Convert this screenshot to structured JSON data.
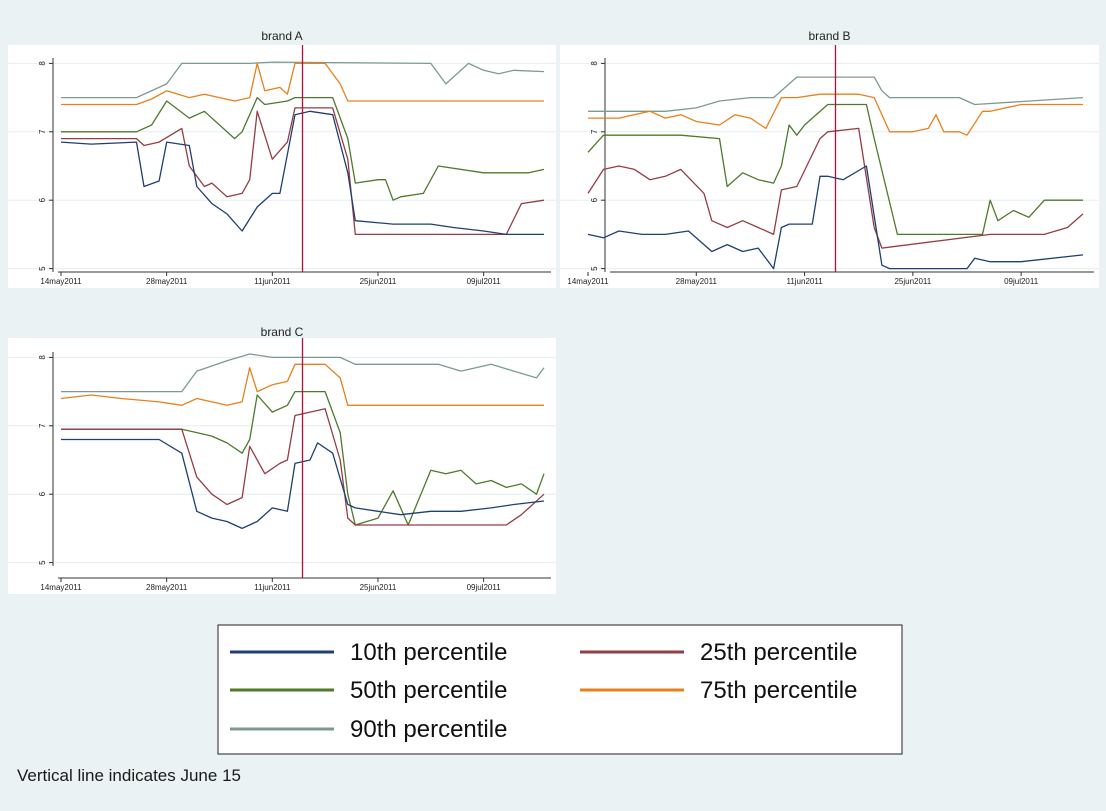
{
  "chart_data": [
    {
      "type": "line",
      "title": "brand A",
      "x_ticks": [
        "14may2011",
        "28may2011",
        "11jun2011",
        "25jun2011",
        "09jul2011"
      ],
      "y_ticks": [
        5,
        6,
        7,
        8
      ],
      "xlim": [
        "2011-05-14",
        "2011-07-17"
      ],
      "ylim": [
        4.95,
        8.05
      ],
      "vline": "2011-06-15",
      "series": [
        {
          "name": "10th percentile",
          "x": [
            "2011-05-14",
            "2011-05-18",
            "2011-05-24",
            "2011-05-25",
            "2011-05-27",
            "2011-05-28",
            "2011-05-31",
            "2011-06-01",
            "2011-06-03",
            "2011-06-05",
            "2011-06-07",
            "2011-06-09",
            "2011-06-11",
            "2011-06-12",
            "2011-06-14",
            "2011-06-16",
            "2011-06-19",
            "2011-06-21",
            "2011-06-22",
            "2011-06-27",
            "2011-07-02",
            "2011-07-05",
            "2011-07-09",
            "2011-07-12",
            "2011-07-17"
          ],
          "y": [
            6.85,
            6.82,
            6.85,
            6.2,
            6.28,
            6.85,
            6.8,
            6.2,
            5.95,
            5.8,
            5.55,
            5.9,
            6.1,
            6.1,
            7.25,
            7.3,
            7.25,
            6.4,
            5.7,
            5.65,
            5.65,
            5.6,
            5.55,
            5.5,
            5.5
          ]
        },
        {
          "name": "25th percentile",
          "x": [
            "2011-05-14",
            "2011-05-24",
            "2011-05-25",
            "2011-05-27",
            "2011-05-30",
            "2011-05-31",
            "2011-06-02",
            "2011-06-03",
            "2011-06-05",
            "2011-06-07",
            "2011-06-08",
            "2011-06-09",
            "2011-06-11",
            "2011-06-13",
            "2011-06-14",
            "2011-06-19",
            "2011-06-21",
            "2011-06-22",
            "2011-07-12",
            "2011-07-14",
            "2011-07-17"
          ],
          "y": [
            6.9,
            6.9,
            6.8,
            6.85,
            7.05,
            6.5,
            6.2,
            6.25,
            6.05,
            6.1,
            6.3,
            7.3,
            6.6,
            6.85,
            7.35,
            7.35,
            6.6,
            5.5,
            5.5,
            5.95,
            6.0
          ]
        },
        {
          "name": "50th percentile",
          "x": [
            "2011-05-14",
            "2011-05-24",
            "2011-05-26",
            "2011-05-28",
            "2011-05-31",
            "2011-06-02",
            "2011-06-04",
            "2011-06-06",
            "2011-06-07",
            "2011-06-09",
            "2011-06-10",
            "2011-06-13",
            "2011-06-14",
            "2011-06-19",
            "2011-06-21",
            "2011-06-22",
            "2011-06-25",
            "2011-06-26",
            "2011-06-27",
            "2011-06-28",
            "2011-07-01",
            "2011-07-03",
            "2011-07-09",
            "2011-07-15",
            "2011-07-17"
          ],
          "y": [
            7.0,
            7.0,
            7.1,
            7.45,
            7.2,
            7.3,
            7.1,
            6.9,
            7.0,
            7.5,
            7.4,
            7.45,
            7.5,
            7.5,
            6.9,
            6.25,
            6.3,
            6.3,
            6.0,
            6.05,
            6.1,
            6.5,
            6.4,
            6.4,
            6.45
          ]
        },
        {
          "name": "75th percentile",
          "x": [
            "2011-05-14",
            "2011-05-24",
            "2011-05-26",
            "2011-05-28",
            "2011-05-31",
            "2011-06-02",
            "2011-06-06",
            "2011-06-08",
            "2011-06-09",
            "2011-06-10",
            "2011-06-12",
            "2011-06-13",
            "2011-06-14",
            "2011-06-18",
            "2011-06-20",
            "2011-06-21",
            "2011-07-17"
          ],
          "y": [
            7.4,
            7.4,
            7.48,
            7.6,
            7.5,
            7.55,
            7.45,
            7.5,
            8.0,
            7.6,
            7.65,
            7.55,
            8.0,
            8.0,
            7.7,
            7.45,
            7.45
          ]
        },
        {
          "name": "90th percentile",
          "x": [
            "2011-05-14",
            "2011-05-24",
            "2011-05-28",
            "2011-05-30",
            "2011-06-08",
            "2011-06-11",
            "2011-07-02",
            "2011-07-04",
            "2011-07-07",
            "2011-07-09",
            "2011-07-11",
            "2011-07-13",
            "2011-07-17"
          ],
          "y": [
            7.5,
            7.5,
            7.7,
            8.0,
            8.0,
            8.02,
            8.0,
            7.7,
            8.0,
            7.9,
            7.85,
            7.9,
            7.88
          ]
        }
      ]
    },
    {
      "type": "line",
      "title": "brand B",
      "x_ticks": [
        "14may2011",
        "28may2011",
        "11jun2011",
        "25jun2011",
        "09jul2011"
      ],
      "y_ticks": [
        5,
        6,
        7,
        8
      ],
      "xlim": [
        "2011-05-14",
        "2011-07-17"
      ],
      "ylim": [
        4.95,
        8.05
      ],
      "vline": "2011-06-15",
      "series": [
        {
          "name": "10th percentile",
          "x": [
            "2011-05-14",
            "2011-05-16",
            "2011-05-18",
            "2011-05-21",
            "2011-05-24",
            "2011-05-27",
            "2011-05-30",
            "2011-06-01",
            "2011-06-03",
            "2011-06-05",
            "2011-06-07",
            "2011-06-08",
            "2011-06-09",
            "2011-06-12",
            "2011-06-13",
            "2011-06-14",
            "2011-06-16",
            "2011-06-19",
            "2011-06-21",
            "2011-06-22",
            "2011-06-25",
            "2011-07-02",
            "2011-07-03",
            "2011-07-05",
            "2011-07-09",
            "2011-07-17"
          ],
          "y": [
            5.5,
            5.45,
            5.55,
            5.5,
            5.5,
            5.55,
            5.25,
            5.35,
            5.25,
            5.3,
            5.0,
            5.6,
            5.65,
            5.65,
            6.35,
            6.35,
            6.3,
            6.5,
            5.05,
            5.0,
            5.0,
            5.0,
            5.15,
            5.1,
            5.1,
            5.2
          ]
        },
        {
          "name": "25th percentile",
          "x": [
            "2011-05-14",
            "2011-05-16",
            "2011-05-18",
            "2011-05-20",
            "2011-05-22",
            "2011-05-24",
            "2011-05-26",
            "2011-05-29",
            "2011-05-30",
            "2011-06-01",
            "2011-06-03",
            "2011-06-05",
            "2011-06-07",
            "2011-06-08",
            "2011-06-10",
            "2011-06-13",
            "2011-06-14",
            "2011-06-18",
            "2011-06-20",
            "2011-06-21",
            "2011-07-05",
            "2011-07-12",
            "2011-07-15",
            "2011-07-17"
          ],
          "y": [
            6.1,
            6.45,
            6.5,
            6.45,
            6.3,
            6.35,
            6.45,
            6.1,
            5.7,
            5.6,
            5.7,
            5.6,
            5.5,
            6.15,
            6.2,
            6.9,
            7.0,
            7.05,
            5.6,
            5.3,
            5.5,
            5.5,
            5.6,
            5.8
          ]
        },
        {
          "name": "50th percentile",
          "x": [
            "2011-05-14",
            "2011-05-16",
            "2011-05-26",
            "2011-05-31",
            "2011-06-01",
            "2011-06-03",
            "2011-06-05",
            "2011-06-07",
            "2011-06-08",
            "2011-06-09",
            "2011-06-10",
            "2011-06-11",
            "2011-06-14",
            "2011-06-17",
            "2011-06-19",
            "2011-06-20",
            "2011-06-23",
            "2011-07-04",
            "2011-07-05",
            "2011-07-06",
            "2011-07-08",
            "2011-07-10",
            "2011-07-12",
            "2011-07-17"
          ],
          "y": [
            6.7,
            6.95,
            6.95,
            6.9,
            6.2,
            6.4,
            6.3,
            6.25,
            6.5,
            7.1,
            6.95,
            7.1,
            7.4,
            7.4,
            7.4,
            6.9,
            5.5,
            5.5,
            6.0,
            5.7,
            5.85,
            5.75,
            6.0,
            6.0
          ]
        },
        {
          "name": "75th percentile",
          "x": [
            "2011-05-14",
            "2011-05-18",
            "2011-05-22",
            "2011-05-24",
            "2011-05-26",
            "2011-05-28",
            "2011-05-31",
            "2011-06-02",
            "2011-06-04",
            "2011-06-06",
            "2011-06-08",
            "2011-06-10",
            "2011-06-13",
            "2011-06-18",
            "2011-06-20",
            "2011-06-22",
            "2011-06-25",
            "2011-06-27",
            "2011-06-28",
            "2011-06-29",
            "2011-07-01",
            "2011-07-02",
            "2011-07-04",
            "2011-07-05",
            "2011-07-09",
            "2011-07-17"
          ],
          "y": [
            7.2,
            7.2,
            7.3,
            7.2,
            7.25,
            7.15,
            7.1,
            7.25,
            7.2,
            7.05,
            7.5,
            7.5,
            7.55,
            7.55,
            7.5,
            7.0,
            7.0,
            7.05,
            7.25,
            7.0,
            7.0,
            6.95,
            7.3,
            7.3,
            7.4,
            7.4
          ]
        },
        {
          "name": "90th percentile",
          "x": [
            "2011-05-14",
            "2011-05-24",
            "2011-05-28",
            "2011-05-31",
            "2011-06-04",
            "2011-06-07",
            "2011-06-09",
            "2011-06-10",
            "2011-06-20",
            "2011-06-21",
            "2011-06-22",
            "2011-07-01",
            "2011-07-03",
            "2011-07-17"
          ],
          "y": [
            7.3,
            7.3,
            7.35,
            7.45,
            7.5,
            7.5,
            7.7,
            7.8,
            7.8,
            7.6,
            7.5,
            7.5,
            7.4,
            7.5
          ]
        }
      ]
    },
    {
      "type": "line",
      "title": "brand C",
      "x_ticks": [
        "14may2011",
        "28may2011",
        "11jun2011",
        "25jun2011",
        "09jul2011"
      ],
      "y_ticks": [
        5,
        6,
        7,
        8
      ],
      "xlim": [
        "2011-05-14",
        "2011-07-17"
      ],
      "ylim": [
        4.95,
        8.05
      ],
      "vline": "2011-06-15",
      "series": [
        {
          "name": "10th percentile",
          "x": [
            "2011-05-14",
            "2011-05-16",
            "2011-05-27",
            "2011-05-30",
            "2011-06-01",
            "2011-06-03",
            "2011-06-05",
            "2011-06-07",
            "2011-06-09",
            "2011-06-11",
            "2011-06-13",
            "2011-06-14",
            "2011-06-16",
            "2011-06-17",
            "2011-06-19",
            "2011-06-21",
            "2011-06-22",
            "2011-06-25",
            "2011-06-28",
            "2011-07-02",
            "2011-07-06",
            "2011-07-10",
            "2011-07-13",
            "2011-07-17"
          ],
          "y": [
            6.8,
            6.8,
            6.8,
            6.6,
            5.75,
            5.65,
            5.6,
            5.5,
            5.6,
            5.8,
            5.75,
            6.45,
            6.5,
            6.75,
            6.6,
            5.85,
            5.8,
            5.75,
            5.7,
            5.75,
            5.75,
            5.8,
            5.85,
            5.9
          ]
        },
        {
          "name": "25th percentile",
          "x": [
            "2011-05-14",
            "2011-05-30",
            "2011-06-01",
            "2011-06-03",
            "2011-06-05",
            "2011-06-07",
            "2011-06-08",
            "2011-06-10",
            "2011-06-12",
            "2011-06-13",
            "2011-06-14",
            "2011-06-18",
            "2011-06-20",
            "2011-06-21",
            "2011-06-22",
            "2011-06-25",
            "2011-07-12",
            "2011-07-14",
            "2011-07-17"
          ],
          "y": [
            6.95,
            6.95,
            6.25,
            6.0,
            5.85,
            5.95,
            6.7,
            6.3,
            6.45,
            6.5,
            7.15,
            7.25,
            6.5,
            5.65,
            5.55,
            5.55,
            5.55,
            5.7,
            6.0
          ]
        },
        {
          "name": "50th percentile",
          "x": [
            "2011-05-14",
            "2011-05-30",
            "2011-06-01",
            "2011-06-03",
            "2011-06-05",
            "2011-06-07",
            "2011-06-08",
            "2011-06-09",
            "2011-06-11",
            "2011-06-13",
            "2011-06-14",
            "2011-06-18",
            "2011-06-20",
            "2011-06-21",
            "2011-06-22",
            "2011-06-25",
            "2011-06-27",
            "2011-06-29",
            "2011-07-02",
            "2011-07-04",
            "2011-07-06",
            "2011-07-08",
            "2011-07-10",
            "2011-07-12",
            "2011-07-14",
            "2011-07-16",
            "2011-07-17"
          ],
          "y": [
            6.95,
            6.95,
            6.9,
            6.85,
            6.75,
            6.6,
            6.8,
            7.45,
            7.2,
            7.3,
            7.5,
            7.5,
            6.9,
            6.0,
            5.55,
            5.65,
            6.05,
            5.55,
            6.35,
            6.3,
            6.35,
            6.15,
            6.2,
            6.1,
            6.15,
            6.0,
            6.3
          ]
        },
        {
          "name": "75th percentile",
          "x": [
            "2011-05-14",
            "2011-05-18",
            "2011-05-22",
            "2011-05-27",
            "2011-05-30",
            "2011-06-01",
            "2011-06-05",
            "2011-06-07",
            "2011-06-08",
            "2011-06-09",
            "2011-06-11",
            "2011-06-13",
            "2011-06-14",
            "2011-06-18",
            "2011-06-20",
            "2011-06-21",
            "2011-07-17"
          ],
          "y": [
            7.4,
            7.45,
            7.4,
            7.35,
            7.3,
            7.4,
            7.3,
            7.35,
            7.85,
            7.5,
            7.6,
            7.65,
            7.9,
            7.9,
            7.7,
            7.3,
            7.3
          ]
        },
        {
          "name": "90th percentile",
          "x": [
            "2011-05-14",
            "2011-05-24",
            "2011-05-30",
            "2011-06-01",
            "2011-06-05",
            "2011-06-08",
            "2011-06-11",
            "2011-06-20",
            "2011-06-22",
            "2011-07-03",
            "2011-07-06",
            "2011-07-10",
            "2011-07-13",
            "2011-07-16",
            "2011-07-17"
          ],
          "y": [
            7.5,
            7.5,
            7.5,
            7.8,
            7.95,
            8.05,
            8.0,
            8.0,
            7.9,
            7.9,
            7.8,
            7.9,
            7.8,
            7.7,
            7.85
          ]
        }
      ]
    }
  ],
  "legend": [
    {
      "label": "10th percentile",
      "color": "#1f3f73"
    },
    {
      "label": "25th percentile",
      "color": "#943d44"
    },
    {
      "label": "50th percentile",
      "color": "#4e7a2b"
    },
    {
      "label": "75th percentile",
      "color": "#e8801c"
    },
    {
      "label": "90th percentile",
      "color": "#7c9a94"
    }
  ],
  "colors": {
    "vline": "#b5103c",
    "plot_bg": "#ffffff",
    "page_bg": "#eaf2f3",
    "grid": "#e4eeef"
  },
  "note": "Vertical line indicates June 15"
}
